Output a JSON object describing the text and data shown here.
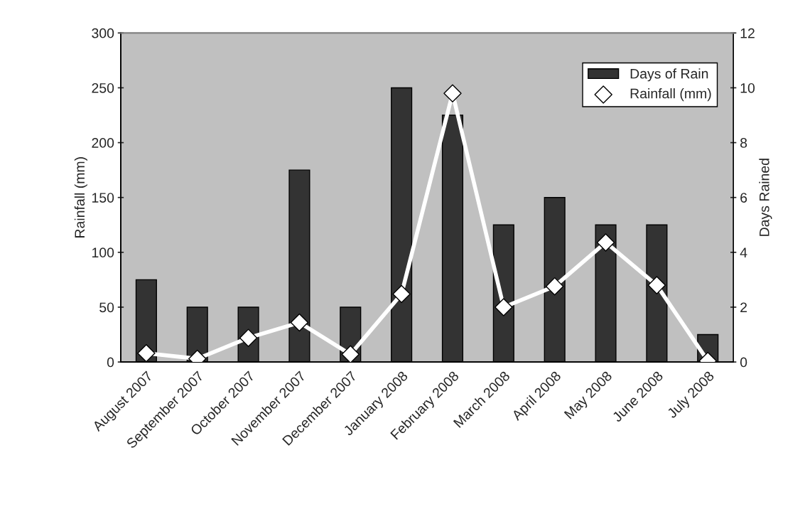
{
  "chart_data": {
    "type": "bar",
    "ylabel": "Rainfall (mm)",
    "y2label": "Days Rained",
    "categories": [
      "August 2007",
      "September 2007",
      "October 2007",
      "November 2007",
      "December 2007",
      "January 2008",
      "February 2008",
      "March 2008",
      "April 2008",
      "May 2008",
      "June 2008",
      "July 2008"
    ],
    "series": [
      {
        "name": "Days of Rain",
        "axis": "y2",
        "color": "#333333",
        "values": [
          3,
          2,
          2,
          7,
          2,
          10,
          9,
          5,
          6,
          5,
          5,
          1
        ]
      },
      {
        "name": "Rainfall (mm)",
        "type": "line",
        "axis": "y",
        "color": "#ffffff",
        "marker": "diamond",
        "values": [
          8,
          3,
          22,
          36,
          7,
          62,
          245,
          50,
          69,
          109,
          70,
          1
        ]
      }
    ],
    "ylim": [
      0,
      300
    ],
    "yticks": [
      0,
      50,
      100,
      150,
      200,
      250,
      300
    ],
    "y2lim": [
      0,
      12
    ],
    "y2ticks": [
      0,
      2,
      4,
      6,
      8,
      10,
      12
    ],
    "grid": false,
    "legend": "top right"
  }
}
